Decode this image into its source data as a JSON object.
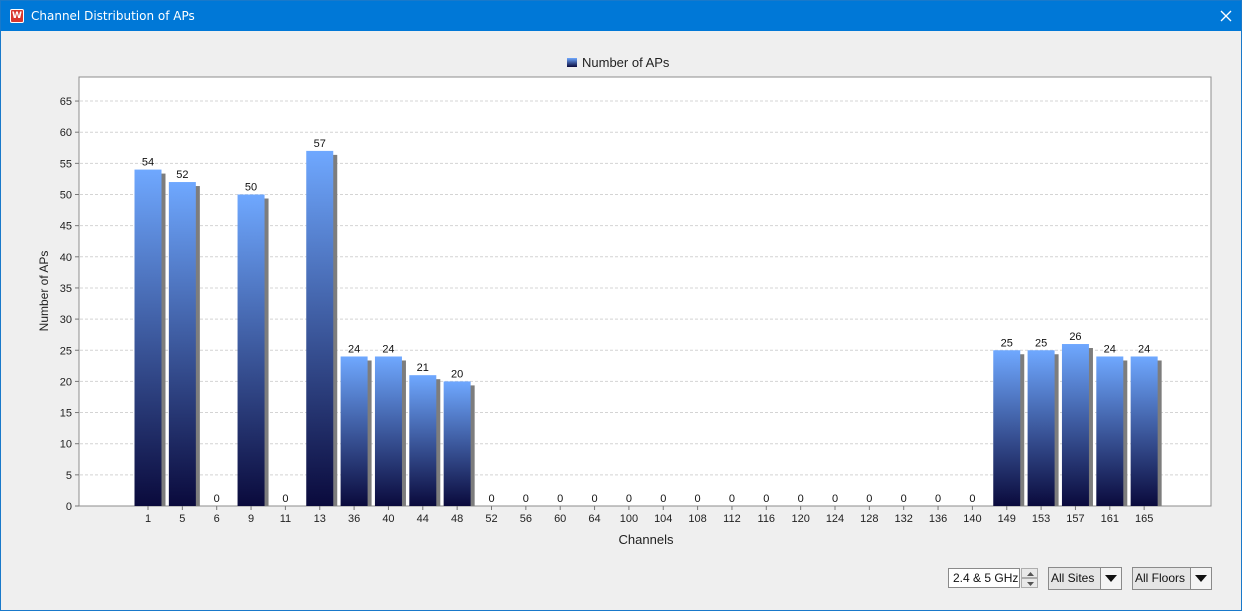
{
  "window": {
    "title": "Channel Distribution of APs",
    "app_icon": "app-logo-icon",
    "close_icon": "close-icon"
  },
  "controls": {
    "band": {
      "value": "2.4 & 5 GHz",
      "spinner_icons": [
        "spinner-up-icon",
        "spinner-down-icon"
      ]
    },
    "sites": {
      "value": "All Sites",
      "icon": "dropdown-arrow-icon"
    },
    "floors": {
      "value": "All Floors",
      "icon": "dropdown-arrow-icon"
    }
  },
  "chart_data": {
    "type": "bar",
    "title": "",
    "legend": {
      "entries": [
        "Number of APs"
      ],
      "placement": "top-center"
    },
    "xlabel": "Channels",
    "ylabel": "Number of APs",
    "ylim": [
      0,
      68
    ],
    "yticks": [
      0,
      5,
      10,
      15,
      20,
      25,
      30,
      35,
      40,
      45,
      50,
      55,
      60,
      65
    ],
    "grid": true,
    "categories": [
      "1",
      "5",
      "6",
      "9",
      "11",
      "13",
      "36",
      "40",
      "44",
      "48",
      "52",
      "56",
      "60",
      "64",
      "100",
      "104",
      "108",
      "112",
      "116",
      "120",
      "124",
      "128",
      "132",
      "136",
      "140",
      "149",
      "153",
      "157",
      "161",
      "165"
    ],
    "series": [
      {
        "name": "Number of APs",
        "values": [
          54,
          52,
          0,
          50,
          0,
          57,
          24,
          24,
          21,
          20,
          0,
          0,
          0,
          0,
          0,
          0,
          0,
          0,
          0,
          0,
          0,
          0,
          0,
          0,
          0,
          25,
          25,
          26,
          24,
          24
        ],
        "color_top": "#6fa8ff",
        "color_bottom": "#0a0a3c"
      }
    ],
    "data_labels": true
  }
}
